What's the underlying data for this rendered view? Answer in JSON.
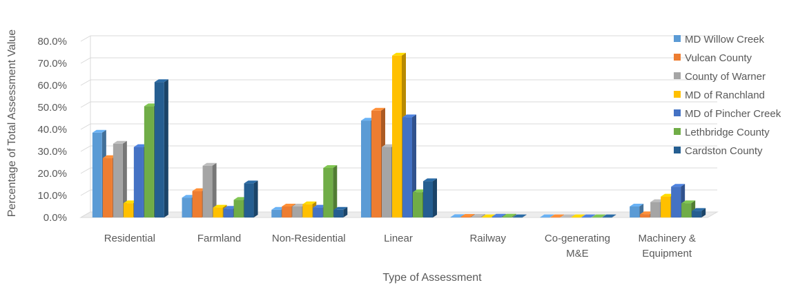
{
  "chart_data": {
    "type": "bar",
    "title": "",
    "xlabel": "Type of Assessment",
    "ylabel": "Percentage of Total Assessment Value",
    "ylim": [
      0,
      80
    ],
    "yticks": [
      "0.0%",
      "10.0%",
      "20.0%",
      "30.0%",
      "40.0%",
      "50.0%",
      "60.0%",
      "70.0%",
      "80.0%"
    ],
    "grid": true,
    "legend_position": "right",
    "style": "3d-clustered-column",
    "categories": [
      [
        "Residential"
      ],
      [
        "Farmland"
      ],
      [
        "Non-Residential"
      ],
      [
        "Linear"
      ],
      [
        "Railway"
      ],
      [
        "Co-generating",
        "M&E"
      ],
      [
        "Machinery &",
        "Equipment"
      ]
    ],
    "series": [
      {
        "name": "MD Willow Creek",
        "color": "#5B9BD5",
        "values": [
          38.5,
          9.0,
          3.5,
          44.0,
          0.2,
          0.1,
          5.0
        ]
      },
      {
        "name": "Vulcan County",
        "color": "#ED7D31",
        "values": [
          27.0,
          12.0,
          5.0,
          48.5,
          0.3,
          0.1,
          1.5
        ]
      },
      {
        "name": "County of Warner",
        "color": "#A5A5A5",
        "values": [
          33.5,
          23.5,
          5.0,
          32.0,
          0.3,
          0.1,
          7.0
        ]
      },
      {
        "name": "MD of Ranchland",
        "color": "#FFC000",
        "values": [
          6.5,
          4.5,
          6.0,
          73.5,
          0.1,
          0.1,
          9.5
        ]
      },
      {
        "name": "MD of Pincher Creek",
        "color": "#4472C4",
        "values": [
          32.0,
          4.0,
          4.5,
          45.5,
          0.4,
          0.1,
          14.0
        ]
      },
      {
        "name": "Lethbridge County",
        "color": "#70AD47",
        "values": [
          50.5,
          8.0,
          22.5,
          11.5,
          0.4,
          0.1,
          6.5
        ]
      },
      {
        "name": "Cardston County",
        "color": "#255E91",
        "values": [
          61.5,
          15.5,
          3.5,
          16.5,
          0.1,
          0.1,
          3.0
        ]
      }
    ]
  }
}
